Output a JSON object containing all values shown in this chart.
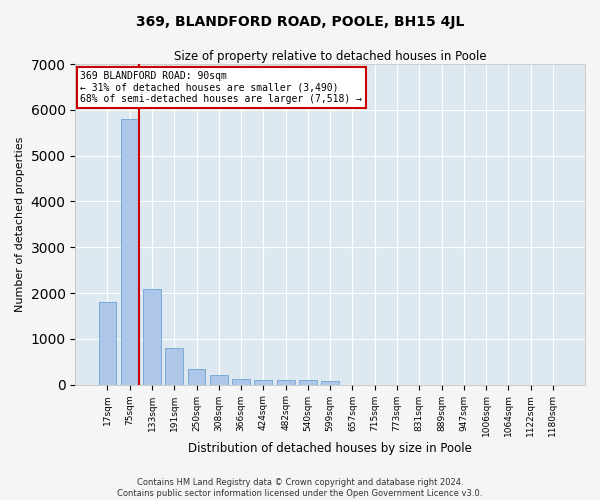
{
  "title": "369, BLANDFORD ROAD, POOLE, BH15 4JL",
  "subtitle": "Size of property relative to detached houses in Poole",
  "xlabel": "Distribution of detached houses by size in Poole",
  "ylabel": "Number of detached properties",
  "categories": [
    "17sqm",
    "75sqm",
    "133sqm",
    "191sqm",
    "250sqm",
    "308sqm",
    "366sqm",
    "424sqm",
    "482sqm",
    "540sqm",
    "599sqm",
    "657sqm",
    "715sqm",
    "773sqm",
    "831sqm",
    "889sqm",
    "947sqm",
    "1006sqm",
    "1064sqm",
    "1122sqm",
    "1180sqm"
  ],
  "values": [
    1800,
    5800,
    2080,
    800,
    340,
    200,
    130,
    110,
    100,
    90,
    80,
    0,
    0,
    0,
    0,
    0,
    0,
    0,
    0,
    0,
    0
  ],
  "bar_color": "#aec6e8",
  "bar_edge_color": "#5a9bd4",
  "bar_width": 0.8,
  "annotation_line1": "369 BLANDFORD ROAD: 90sqm",
  "annotation_line2": "← 31% of detached houses are smaller (3,490)",
  "annotation_line3": "68% of semi-detached houses are larger (7,518) →",
  "annotation_box_color": "#ffffff",
  "annotation_box_edge_color": "#cc0000",
  "red_line_color": "#cc0000",
  "ylim": [
    0,
    7000
  ],
  "yticks": [
    0,
    1000,
    2000,
    3000,
    4000,
    5000,
    6000,
    7000
  ],
  "background_color": "#dde8f0",
  "grid_color": "#ffffff",
  "fig_background": "#f5f5f5",
  "footer_line1": "Contains HM Land Registry data © Crown copyright and database right 2024.",
  "footer_line2": "Contains public sector information licensed under the Open Government Licence v3.0."
}
